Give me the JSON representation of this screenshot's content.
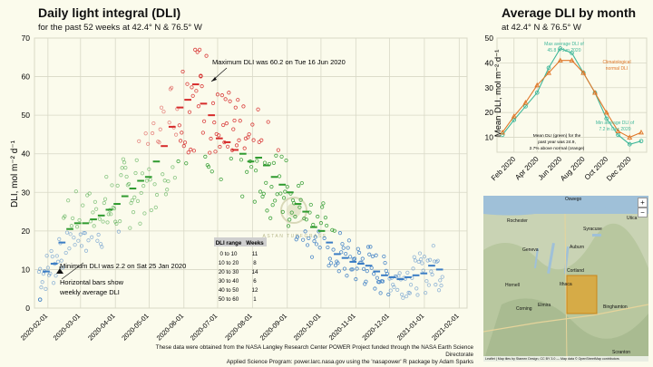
{
  "left_panel": {
    "title": "Daily light integral (DLI)",
    "subtitle": "for the past 52 weeks at 42.4° N & 76.5° W",
    "ylabel": "DLI, mol m⁻² d⁻¹",
    "annotations": {
      "max": "Maximum DLI was 60.2 on Tue 16 Jun 2020",
      "min": "Minimum DLI was 2.2 on Sat 25 Jan 2020",
      "bars_line1": "Horizontal bars show",
      "bars_line2": "weekly average DLI"
    },
    "table": {
      "headers": [
        "DLI range",
        "Weeks"
      ],
      "rows": [
        [
          "0 to 10",
          "11"
        ],
        [
          "10 to 20",
          "8"
        ],
        [
          "20 to 30",
          "14"
        ],
        [
          "30 to 40",
          "6"
        ],
        [
          "40 to 50",
          "12"
        ],
        [
          "50 to 60",
          "1"
        ]
      ]
    },
    "watermark": "ASTAN TURFGRASS"
  },
  "right_panel": {
    "title": "Average DLI by month",
    "subtitle": "at 42.4° N & 76.5° W",
    "ylabel": "Mean DLI, mol m⁻² d⁻¹",
    "annotations": {
      "max_line1": "Max average DLI of",
      "max_line2": "45.8 in Jun 2020",
      "clim_line1": "Climatological",
      "clim_line2": "normal DLI",
      "min_line1": "Min average DLI of",
      "min_line2": "7.2 in Dec 2020",
      "mean_line1": "Mean DLI (green) for the",
      "mean_line2": "past year was 24.9,",
      "mean_line3": "2.7% above normal (orange)"
    }
  },
  "map": {
    "labels": [
      "Oswego",
      "Rochester",
      "Syracuse",
      "Geneva",
      "Auburn",
      "Utica",
      "Cortland",
      "Ithaca",
      "Elmira",
      "Corning",
      "Hornell",
      "Binghamton",
      "Scranton"
    ],
    "attribution": "Leaflet | Map tiles by Stamen Design, CC BY 3.0 — Map data © OpenStreetMap contributors"
  },
  "caption": {
    "line1": "These data were obtained from the NASA Langley Research Center POWER Project funded through the NASA Earth Science Directorate",
    "line2": "Applied Science Program: power.larc.nasa.gov using the 'nasapower' R package by Adam Sparks"
  },
  "colors": {
    "blue": "#3a7cc4",
    "green": "#2e9a2e",
    "red": "#d62b2b",
    "teal": "#3fb79a",
    "orange": "#e0782a"
  },
  "chart_data": [
    {
      "type": "scatter",
      "title": "Daily light integral (DLI)",
      "ylabel": "DLI, mol m⁻² d⁻¹",
      "ylim": [
        0,
        70
      ],
      "x_range": [
        "2020-01-20",
        "2021-02-08"
      ],
      "x_ticks": [
        "2020-02-01",
        "2020-03-01",
        "2020-04-01",
        "2020-05-01",
        "2020-06-01",
        "2020-07-01",
        "2020-08-01",
        "2020-09-01",
        "2020-10-01",
        "2020-11-01",
        "2020-12-01",
        "2021-01-01",
        "2021-02-01"
      ],
      "y_ticks": [
        0,
        10,
        20,
        30,
        40,
        50,
        60,
        70
      ],
      "grid": true,
      "color_rule": "blue: DLI < 20; green: 20 to 40; red: > 40; lighter points for earlier part of the year",
      "weekly_average": {
        "weeks_start": "2020-01-27",
        "values": [
          9.5,
          11.5,
          17,
          20.5,
          22,
          22,
          23,
          24,
          25.5,
          27,
          29,
          31,
          33,
          34,
          38,
          42,
          47,
          52,
          54,
          58,
          53,
          50,
          44,
          43,
          41,
          40,
          38,
          39,
          37,
          34,
          32,
          30,
          27,
          25,
          21,
          20,
          17,
          14,
          13,
          12,
          11.5,
          11,
          9.5,
          8.5,
          8,
          7.5,
          8,
          8.5,
          9,
          11,
          10
        ]
      },
      "daily_points": {
        "note": "approximate DLI values read from the scatter (one point per day)",
        "max": {
          "date": "2020-06-16",
          "value": 60.2
        },
        "min": {
          "date": "2020-01-25",
          "value": 2.2
        }
      },
      "annotations": [
        "Maximum DLI was 60.2 on Tue 16 Jun 2020",
        "Minimum DLI was 2.2 on Sat 25 Jan 2020",
        "Horizontal bars show weekly average DLI"
      ]
    },
    {
      "type": "line",
      "title": "Average DLI by month",
      "ylabel": "Mean DLI, mol m⁻² d⁻¹",
      "ylim": [
        4,
        50
      ],
      "categories": [
        "Jan 2020",
        "Feb 2020",
        "Mar 2020",
        "Apr 2020",
        "May 2020",
        "Jun 2020",
        "Jul 2020",
        "Aug 2020",
        "Sep 2020",
        "Oct 2020",
        "Nov 2020",
        "Dec 2020",
        "Jan 2021"
      ],
      "x_tick_labels": [
        "Feb 2020",
        "Apr 2020",
        "Jun 2020",
        "Aug 2020",
        "Oct 2020",
        "Dec 2020"
      ],
      "y_ticks": [
        10,
        20,
        30,
        40,
        50
      ],
      "series": [
        {
          "name": "Mean DLI (green)",
          "color": "#3fb79a",
          "values": [
            11,
            17,
            22.5,
            28,
            38,
            45.8,
            44,
            36,
            28,
            17.5,
            11,
            7.2,
            8.5
          ]
        },
        {
          "name": "Climatological normal DLI",
          "color": "#e0782a",
          "values": [
            12,
            18.5,
            24,
            31,
            36,
            41,
            41,
            36,
            28,
            20,
            12.5,
            10,
            12
          ]
        }
      ]
    }
  ]
}
